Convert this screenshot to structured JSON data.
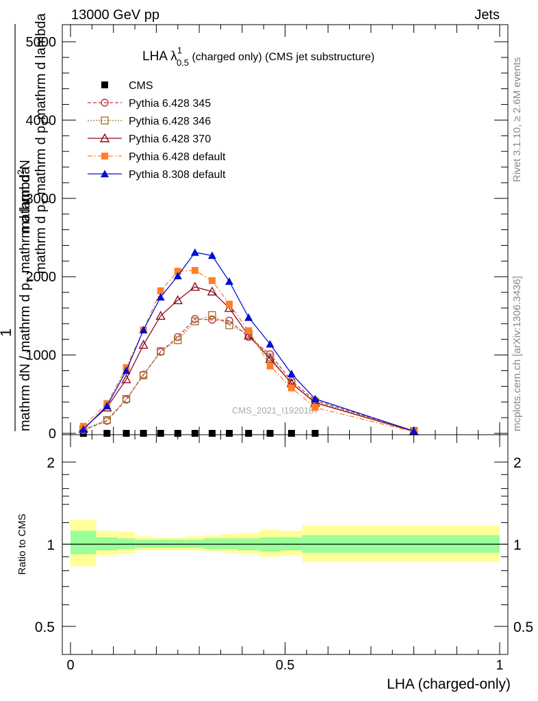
{
  "header": {
    "left": "13000 GeV pp",
    "right": "Jets"
  },
  "plot_title": {
    "main": "LHA λ",
    "sup": "1",
    "sub": "0.5",
    "rest": " (charged only) (CMS jet substructure)"
  },
  "ylabel_main": {
    "one": "1",
    "line1": "mathrm dN / mathrm d p",
    "line1_sub": "T",
    "line1_rest": " mathrm d lambda",
    "line2": "mathrm d",
    "line2_sup": "2",
    "line2_rest": "N",
    "line3": "mathrm d p",
    "line3_sub": "T",
    "line3_rest": " mathrm d p",
    "line3_sub2": "T",
    "line3_rest2": "mathrm d lambda"
  },
  "ylabel_ratio": "Ratio to CMS",
  "xlabel": "LHA (charged-only)",
  "watermark": "CMS_2021_I1920187",
  "side_text": {
    "rivet": "Rivet 3.1.10, ≥ 2.6M events",
    "mcplots": "mcplots.cern.ch [arXiv:1306.3436]"
  },
  "legend": [
    {
      "label": "CMS",
      "color": "#000000",
      "marker": "square-filled",
      "dash": "none"
    },
    {
      "label": "Pythia 6.428 345",
      "color": "#c03040",
      "marker": "circle-open",
      "dash": "dashed"
    },
    {
      "label": "Pythia 6.428 346",
      "color": "#a07830",
      "marker": "square-open",
      "dash": "dotted"
    },
    {
      "label": "Pythia 6.428 370",
      "color": "#8b0a1e",
      "marker": "triangle-open",
      "dash": "solid"
    },
    {
      "label": "Pythia 6.428 default",
      "color": "#ff7f2a",
      "marker": "square-filled",
      "dash": "dashdot"
    },
    {
      "label": "Pythia 8.308 default",
      "color": "#0010d0",
      "marker": "triangle-filled",
      "dash": "solid"
    }
  ],
  "chart_data": [
    {
      "type": "line",
      "panel": "main",
      "xlim": [
        0,
        1
      ],
      "ylim": [
        0,
        5200
      ],
      "y_ticks": [
        0,
        1000,
        2000,
        3000,
        4000,
        5000
      ],
      "y_tick_labels": [
        "0",
        "1000",
        "2000",
        "3000",
        "4000",
        "5000"
      ],
      "x": [
        0.03,
        0.085,
        0.13,
        0.17,
        0.21,
        0.25,
        0.29,
        0.33,
        0.37,
        0.415,
        0.465,
        0.515,
        0.57,
        0.8
      ],
      "series": [
        {
          "name": "CMS",
          "values": [
            5,
            5,
            5,
            5,
            5,
            5,
            5,
            5,
            5,
            5,
            5,
            5,
            5,
            null
          ]
        },
        {
          "name": "Pythia 6.428 345",
          "values": [
            40,
            160,
            430,
            750,
            1040,
            1230,
            1460,
            1450,
            1440,
            1230,
            1010,
            670,
            420,
            30
          ]
        },
        {
          "name": "Pythia 6.428 346",
          "values": [
            50,
            170,
            440,
            740,
            1050,
            1190,
            1430,
            1510,
            1380,
            1270,
            970,
            640,
            400,
            30
          ]
        },
        {
          "name": "Pythia 6.428 370",
          "values": [
            60,
            330,
            690,
            1130,
            1500,
            1700,
            1870,
            1810,
            1600,
            1250,
            950,
            640,
            390,
            25
          ]
        },
        {
          "name": "Pythia 6.428 default",
          "values": [
            90,
            380,
            840,
            1320,
            1820,
            2070,
            2080,
            1950,
            1650,
            1310,
            860,
            580,
            330,
            20
          ]
        },
        {
          "name": "Pythia 8.308 default",
          "values": [
            50,
            350,
            800,
            1320,
            1740,
            2010,
            2310,
            2270,
            1940,
            1480,
            1140,
            760,
            440,
            30
          ]
        }
      ]
    },
    {
      "type": "area",
      "panel": "ratio",
      "xlim": [
        0,
        1
      ],
      "ylim": [
        0.4,
        2.4
      ],
      "y_scale": "log",
      "y_ticks": [
        0.5,
        1,
        2
      ],
      "y_tick_labels": [
        "0.5",
        "1",
        "2"
      ],
      "x_ticks": [
        0,
        0.5,
        1
      ],
      "x_tick_labels": [
        "0",
        "0.5",
        "1"
      ],
      "bins": [
        0.0,
        0.06,
        0.11,
        0.15,
        0.19,
        0.23,
        0.27,
        0.31,
        0.35,
        0.39,
        0.44,
        0.49,
        0.54,
        0.6,
        1.0
      ],
      "reference_line": 1,
      "stat_band": [
        {
          "low": 0.92,
          "high": 1.12
        },
        {
          "low": 0.95,
          "high": 1.06
        },
        {
          "low": 0.96,
          "high": 1.05
        },
        {
          "low": 0.97,
          "high": 1.04
        },
        {
          "low": 0.97,
          "high": 1.04
        },
        {
          "low": 0.97,
          "high": 1.04
        },
        {
          "low": 0.97,
          "high": 1.04
        },
        {
          "low": 0.96,
          "high": 1.05
        },
        {
          "low": 0.96,
          "high": 1.05
        },
        {
          "low": 0.95,
          "high": 1.05
        },
        {
          "low": 0.94,
          "high": 1.06
        },
        {
          "low": 0.95,
          "high": 1.06
        },
        {
          "low": 0.93,
          "high": 1.08
        },
        {
          "low": 0.93,
          "high": 1.08
        }
      ],
      "total_band": [
        {
          "low": 0.83,
          "high": 1.23
        },
        {
          "low": 0.91,
          "high": 1.12
        },
        {
          "low": 0.92,
          "high": 1.11
        },
        {
          "low": 0.95,
          "high": 1.07
        },
        {
          "low": 0.95,
          "high": 1.06
        },
        {
          "low": 0.95,
          "high": 1.06
        },
        {
          "low": 0.95,
          "high": 1.07
        },
        {
          "low": 0.94,
          "high": 1.08
        },
        {
          "low": 0.93,
          "high": 1.09
        },
        {
          "low": 0.92,
          "high": 1.1
        },
        {
          "low": 0.9,
          "high": 1.13
        },
        {
          "low": 0.91,
          "high": 1.12
        },
        {
          "low": 0.86,
          "high": 1.17
        },
        {
          "low": 0.86,
          "high": 1.17
        }
      ],
      "stat_color": "#99ff99",
      "total_color": "#ffff99"
    }
  ]
}
